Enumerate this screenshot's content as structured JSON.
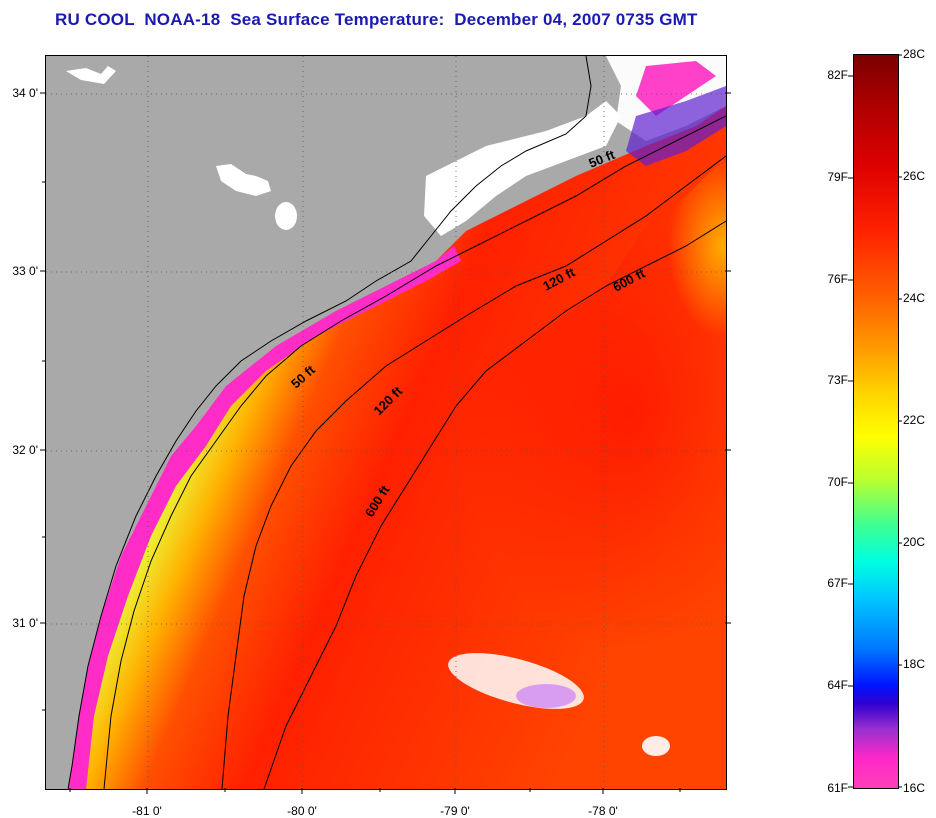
{
  "title": "RU COOL  NOAA-18  Sea Surface Temperature:  December 04, 2007 0735 GMT",
  "map": {
    "lat_labels": [
      "34 0'",
      "33 0'",
      "32 0'",
      "31 0'"
    ],
    "lon_labels": [
      "-81 0'",
      "-80 0'",
      "-79 0'",
      "-78 0'"
    ],
    "contour_labels": [
      "50 ft",
      "120 ft",
      "600 ft",
      "50 ft",
      "120 ft",
      "600 ft"
    ]
  },
  "colorbar": {
    "fahrenheit": [
      "82F",
      "79F",
      "76F",
      "73F",
      "70F",
      "67F",
      "64F",
      "61F"
    ],
    "celsius": [
      "28C",
      "26C",
      "24C",
      "22C",
      "20C",
      "18C",
      "16C"
    ],
    "colors": [
      "#7a0000",
      "#dd0000",
      "#ff6000",
      "#ffff00",
      "#00ffe0",
      "#0014ff",
      "#ff40b8"
    ]
  }
}
